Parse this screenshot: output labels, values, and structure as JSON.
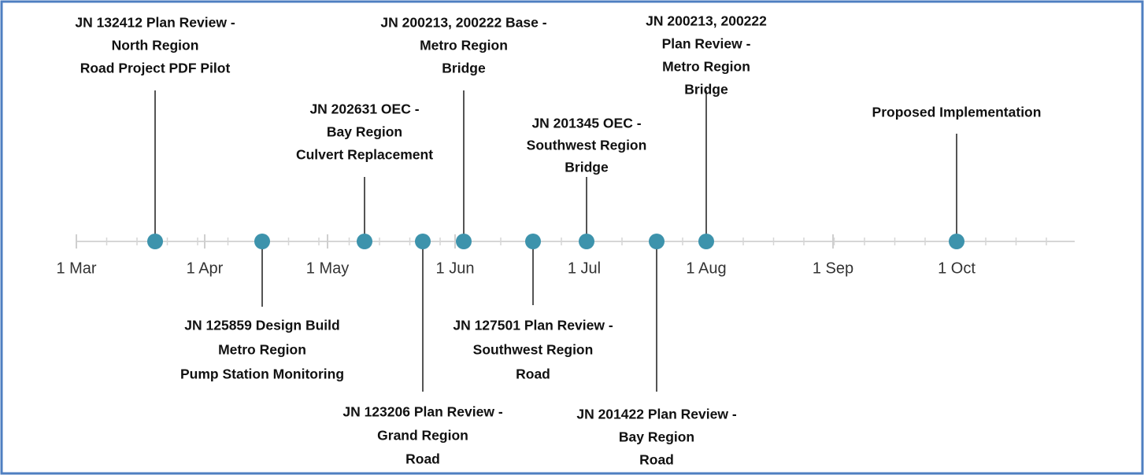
{
  "events": [
    {
      "lines": [
        "JN 132412 Plan Review -",
        "North Region",
        "Road Project PDF Pilot"
      ]
    },
    {
      "lines": [
        "JN 125859 Design Build",
        "Metro Region",
        "Pump Station Monitoring"
      ]
    },
    {
      "lines": [
        "JN 202631 OEC -",
        "Bay Region",
        "Culvert Replacement"
      ]
    },
    {
      "lines": [
        "JN 123206 Plan Review -",
        "Grand Region",
        "Road"
      ]
    },
    {
      "lines": [
        "JN 200213, 200222 Base -",
        "Metro Region",
        "Bridge"
      ]
    },
    {
      "lines": [
        "JN 127501 Plan Review -",
        "Southwest Region",
        "Road"
      ]
    },
    {
      "lines": [
        "JN 201345 OEC -",
        "Southwest Region",
        "Bridge"
      ]
    },
    {
      "lines": [
        "JN 201422 Plan Review -",
        "Bay Region",
        "Road"
      ]
    },
    {
      "lines": [
        "JN 200213, 200222",
        "Plan Review -",
        "Metro Region",
        "Bridge"
      ]
    },
    {
      "lines": [
        "Proposed Implementation"
      ]
    }
  ],
  "axis": {
    "labels": [
      "1 Mar",
      "1 Apr",
      "1 May",
      "1 Jun",
      "1 Jul",
      "1 Aug",
      "1 Sep",
      "1 Oct"
    ]
  }
}
